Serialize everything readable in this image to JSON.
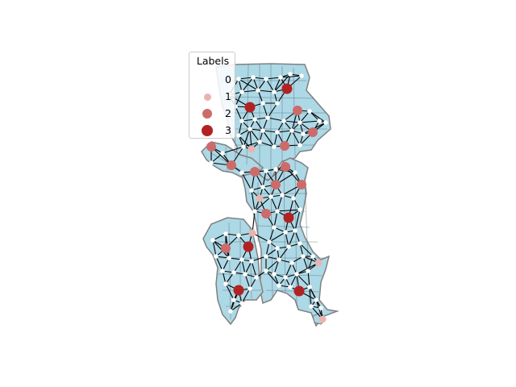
{
  "colors": {
    "background": "#ffffff",
    "land_fill": "#add8e6",
    "boundary": "#808080",
    "district_line": "#5a6f78",
    "edge": "#000000",
    "node": "#ffffff",
    "label_0": "#ffffff",
    "label_1": "#e8b4b0",
    "label_2": "#cd6b6b",
    "label_3": "#b22222"
  },
  "legend": {
    "title": "Labels",
    "items": [
      {
        "label": "0",
        "color": "#ffffff",
        "size": 4
      },
      {
        "label": "1",
        "color": "#e8b4b0",
        "size": 9
      },
      {
        "label": "2",
        "color": "#cd6b6b",
        "size": 12
      },
      {
        "label": "3",
        "color": "#b22222",
        "size": 14
      }
    ]
  }
}
